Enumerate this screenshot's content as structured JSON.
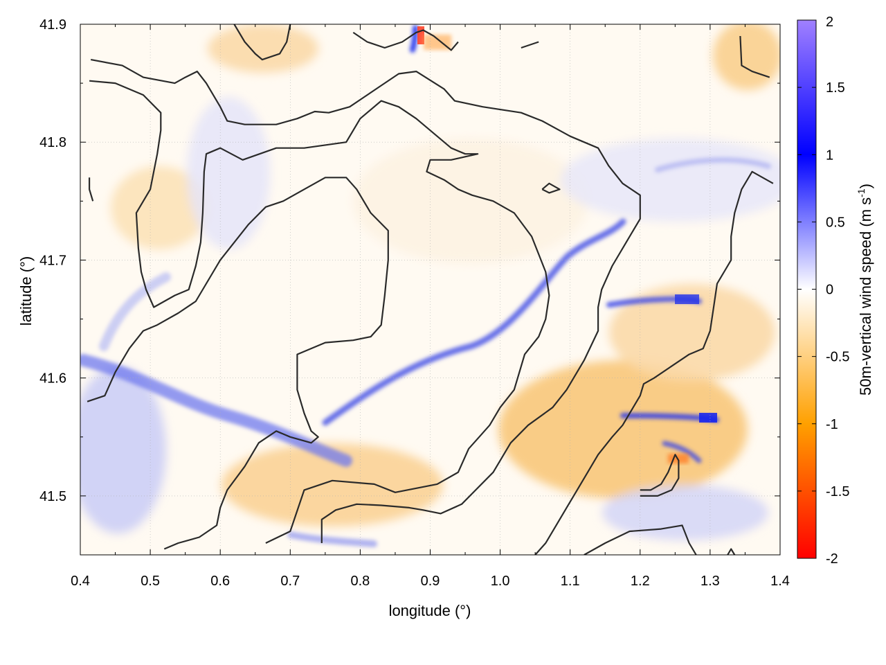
{
  "chart_data": {
    "type": "heatmap",
    "xlabel": "longitude (°)",
    "ylabel": "latitude (°)",
    "xlim": [
      0.4,
      1.4
    ],
    "ylim": [
      41.45,
      41.9
    ],
    "x_ticks": [
      0.4,
      0.5,
      0.6,
      0.7,
      0.8,
      0.9,
      1.0,
      1.1,
      1.2,
      1.3,
      1.4
    ],
    "x_tick_labels": [
      "0.4",
      "0.5",
      "0.6",
      "0.7",
      "0.8",
      "0.9",
      "1.0",
      "1.1",
      "1.2",
      "1.3",
      "1.4"
    ],
    "y_ticks": [
      41.5,
      41.6,
      41.7,
      41.8,
      41.9
    ],
    "y_tick_labels": [
      "41.5",
      "41.6",
      "41.7",
      "41.8",
      "41.9"
    ],
    "grid": true,
    "colorbar": {
      "label_main": "50m-vertical wind speed (m s",
      "label_sup": "-1",
      "label_close": ")",
      "range": [
        -2,
        2
      ],
      "ticks": [
        -2,
        -1.5,
        -1,
        -0.5,
        0,
        0.5,
        1,
        1.5,
        2
      ],
      "tick_labels": [
        "-2",
        "-1.5",
        "-1",
        "-0.5",
        "0",
        "0.5",
        "1",
        "1.5",
        "2"
      ],
      "colors": [
        {
          "v": -2.0,
          "c": "#ff0000"
        },
        {
          "v": -1.0,
          "c": "#ffa000"
        },
        {
          "v": 0.0,
          "c": "#ffffff"
        },
        {
          "v": 1.0,
          "c": "#0000ff"
        },
        {
          "v": 2.0,
          "c": "#a080ff"
        }
      ],
      "placement": "right"
    },
    "notable_features": [
      {
        "desc": "blue band",
        "lon": [
          0.5,
          0.92
        ],
        "lat": [
          41.55,
          41.6
        ],
        "value_approx": 0.6
      },
      {
        "desc": "blue ridge",
        "lon": [
          0.95,
          1.18
        ],
        "lat": [
          41.62,
          41.76
        ],
        "value_approx": 0.8
      },
      {
        "desc": "red spot",
        "lon": [
          0.88,
          0.9
        ],
        "lat": [
          41.88,
          41.9
        ],
        "value_approx": -1.6
      },
      {
        "desc": "blue spot",
        "lon": [
          1.29,
          1.3
        ],
        "lat": [
          41.56,
          41.57
        ],
        "value_approx": 1.1
      },
      {
        "desc": "orange region",
        "lon": [
          1.0,
          1.3
        ],
        "lat": [
          41.47,
          41.57
        ],
        "value_approx": -0.7
      }
    ],
    "contours": [
      [
        [
          0.415,
          41.87
        ],
        [
          0.46,
          41.865
        ],
        [
          0.49,
          41.855
        ],
        [
          0.535,
          41.85
        ],
        [
          0.55,
          41.855
        ],
        [
          0.567,
          41.86
        ],
        [
          0.58,
          41.85
        ],
        [
          0.6,
          41.83
        ],
        [
          0.61,
          41.818
        ],
        [
          0.635,
          41.815
        ],
        [
          0.68,
          41.815
        ],
        [
          0.71,
          41.82
        ],
        [
          0.735,
          41.826
        ],
        [
          0.755,
          41.825
        ],
        [
          0.785,
          41.83
        ],
        [
          0.805,
          41.838
        ],
        [
          0.83,
          41.848
        ],
        [
          0.855,
          41.858
        ],
        [
          0.88,
          41.86
        ],
        [
          0.92,
          41.845
        ],
        [
          0.935,
          41.835
        ],
        [
          0.975,
          41.83
        ],
        [
          1.03,
          41.825
        ],
        [
          1.06,
          41.818
        ],
        [
          1.1,
          41.805
        ],
        [
          1.14,
          41.795
        ],
        [
          1.155,
          41.78
        ],
        [
          1.175,
          41.765
        ],
        [
          1.2,
          41.755
        ],
        [
          1.2,
          41.735
        ],
        [
          1.18,
          41.715
        ],
        [
          1.16,
          41.695
        ],
        [
          1.145,
          41.675
        ],
        [
          1.14,
          41.66
        ],
        [
          1.14,
          41.64
        ],
        [
          1.12,
          41.615
        ],
        [
          1.095,
          41.59
        ],
        [
          1.075,
          41.575
        ],
        [
          1.04,
          41.56
        ],
        [
          1.015,
          41.545
        ],
        [
          0.99,
          41.52
        ],
        [
          0.965,
          41.505
        ],
        [
          0.945,
          41.493
        ],
        [
          0.915,
          41.485
        ],
        [
          0.89,
          41.488
        ],
        [
          0.87,
          41.49
        ],
        [
          0.83,
          41.492
        ],
        [
          0.795,
          41.493
        ],
        [
          0.765,
          41.488
        ],
        [
          0.745,
          41.48
        ],
        [
          0.745,
          41.46
        ]
      ],
      [
        [
          0.413,
          41.852
        ],
        [
          0.45,
          41.85
        ],
        [
          0.49,
          41.84
        ],
        [
          0.515,
          41.825
        ],
        [
          0.515,
          41.81
        ],
        [
          0.51,
          41.79
        ],
        [
          0.5,
          41.76
        ],
        [
          0.48,
          41.74
        ],
        [
          0.483,
          41.71
        ],
        [
          0.487,
          41.69
        ],
        [
          0.494,
          41.675
        ],
        [
          0.505,
          41.66
        ],
        [
          0.535,
          41.67
        ],
        [
          0.555,
          41.675
        ],
        [
          0.565,
          41.695
        ],
        [
          0.572,
          41.715
        ],
        [
          0.575,
          41.74
        ],
        [
          0.577,
          41.775
        ],
        [
          0.58,
          41.79
        ],
        [
          0.6,
          41.795
        ],
        [
          0.632,
          41.785
        ],
        [
          0.68,
          41.795
        ],
        [
          0.72,
          41.795
        ],
        [
          0.78,
          41.8
        ],
        [
          0.8,
          41.82
        ],
        [
          0.83,
          41.835
        ],
        [
          0.855,
          41.83
        ],
        [
          0.88,
          41.82
        ],
        [
          0.91,
          41.805
        ],
        [
          0.93,
          41.795
        ],
        [
          0.95,
          41.79
        ],
        [
          0.968,
          41.79
        ],
        [
          0.93,
          41.785
        ],
        [
          0.9,
          41.785
        ],
        [
          0.895,
          41.775
        ],
        [
          0.92,
          41.768
        ],
        [
          0.94,
          41.76
        ],
        [
          0.96,
          41.755
        ],
        [
          0.99,
          41.75
        ],
        [
          1.02,
          41.74
        ],
        [
          1.045,
          41.72
        ],
        [
          1.055,
          41.705
        ],
        [
          1.065,
          41.69
        ],
        [
          1.07,
          41.67
        ],
        [
          1.065,
          41.65
        ],
        [
          1.055,
          41.635
        ],
        [
          1.035,
          41.62
        ],
        [
          1.02,
          41.59
        ],
        [
          1.0,
          41.575
        ],
        [
          0.985,
          41.56
        ],
        [
          0.97,
          41.55
        ],
        [
          0.955,
          41.54
        ],
        [
          0.94,
          41.52
        ],
        [
          0.91,
          41.51
        ],
        [
          0.85,
          41.503
        ],
        [
          0.82,
          41.51
        ],
        [
          0.76,
          41.513
        ],
        [
          0.72,
          41.505
        ],
        [
          0.7,
          41.47
        ],
        [
          0.665,
          41.46
        ]
      ],
      [
        [
          0.413,
          41.77
        ],
        [
          0.413,
          41.76
        ],
        [
          0.418,
          41.75
        ]
      ],
      [
        [
          0.41,
          41.58
        ],
        [
          0.435,
          41.585
        ],
        [
          0.45,
          41.605
        ],
        [
          0.47,
          41.625
        ],
        [
          0.49,
          41.64
        ],
        [
          0.51,
          41.645
        ],
        [
          0.54,
          41.655
        ],
        [
          0.565,
          41.665
        ],
        [
          0.575,
          41.675
        ],
        [
          0.585,
          41.685
        ],
        [
          0.6,
          41.7
        ],
        [
          0.62,
          41.715
        ],
        [
          0.64,
          41.73
        ],
        [
          0.665,
          41.745
        ],
        [
          0.69,
          41.75
        ],
        [
          0.72,
          41.76
        ],
        [
          0.75,
          41.77
        ],
        [
          0.78,
          41.77
        ],
        [
          0.795,
          41.76
        ],
        [
          0.815,
          41.74
        ],
        [
          0.84,
          41.725
        ],
        [
          0.84,
          41.7
        ],
        [
          0.835,
          41.67
        ],
        [
          0.83,
          41.645
        ],
        [
          0.815,
          41.635
        ],
        [
          0.79,
          41.632
        ],
        [
          0.75,
          41.63
        ],
        [
          0.73,
          41.625
        ],
        [
          0.71,
          41.62
        ],
        [
          0.71,
          41.59
        ],
        [
          0.72,
          41.57
        ],
        [
          0.73,
          41.555
        ],
        [
          0.74,
          41.55
        ],
        [
          0.73,
          41.545
        ],
        [
          0.7,
          41.55
        ],
        [
          0.68,
          41.555
        ],
        [
          0.655,
          41.545
        ],
        [
          0.635,
          41.525
        ],
        [
          0.61,
          41.505
        ],
        [
          0.6,
          41.49
        ],
        [
          0.595,
          41.475
        ],
        [
          0.57,
          41.465
        ],
        [
          0.54,
          41.46
        ],
        [
          0.52,
          41.455
        ]
      ],
      [
        [
          0.62,
          41.9
        ],
        [
          0.635,
          41.885
        ],
        [
          0.65,
          41.875
        ],
        [
          0.66,
          41.87
        ],
        [
          0.685,
          41.875
        ],
        [
          0.695,
          41.885
        ],
        [
          0.7,
          41.9
        ]
      ],
      [
        [
          0.79,
          41.893
        ],
        [
          0.81,
          41.885
        ],
        [
          0.835,
          41.88
        ],
        [
          0.86,
          41.885
        ],
        [
          0.88,
          41.893
        ],
        [
          0.89,
          41.895
        ],
        [
          0.905,
          41.89
        ],
        [
          0.93,
          41.878
        ],
        [
          0.94,
          41.885
        ]
      ],
      [
        [
          1.03,
          41.88
        ],
        [
          1.055,
          41.885
        ]
      ],
      [
        [
          1.343,
          41.89
        ],
        [
          1.345,
          41.865
        ],
        [
          1.36,
          41.86
        ],
        [
          1.385,
          41.855
        ]
      ],
      [
        [
          1.06,
          41.76
        ],
        [
          1.07,
          41.765
        ],
        [
          1.085,
          41.76
        ],
        [
          1.07,
          41.757
        ],
        [
          1.06,
          41.76
        ]
      ],
      [
        [
          1.39,
          41.765
        ],
        [
          1.36,
          41.775
        ],
        [
          1.345,
          41.76
        ],
        [
          1.335,
          41.74
        ],
        [
          1.33,
          41.72
        ],
        [
          1.33,
          41.7
        ],
        [
          1.32,
          41.69
        ],
        [
          1.31,
          41.68
        ],
        [
          1.305,
          41.66
        ],
        [
          1.3,
          41.64
        ],
        [
          1.29,
          41.625
        ],
        [
          1.27,
          41.62
        ],
        [
          1.245,
          41.61
        ],
        [
          1.22,
          41.6
        ],
        [
          1.205,
          41.595
        ],
        [
          1.2,
          41.585
        ],
        [
          1.19,
          41.575
        ],
        [
          1.175,
          41.56
        ],
        [
          1.16,
          41.55
        ],
        [
          1.14,
          41.535
        ],
        [
          1.125,
          41.52
        ],
        [
          1.11,
          41.505
        ],
        [
          1.095,
          41.49
        ],
        [
          1.08,
          41.475
        ],
        [
          1.065,
          41.46
        ],
        [
          1.05,
          41.45
        ]
      ],
      [
        [
          1.2,
          41.5
        ],
        [
          1.225,
          41.5
        ],
        [
          1.245,
          41.505
        ],
        [
          1.255,
          41.515
        ],
        [
          1.255,
          41.53
        ],
        [
          1.25,
          41.535
        ],
        [
          1.24,
          41.52
        ],
        [
          1.23,
          41.51
        ],
        [
          1.215,
          41.505
        ],
        [
          1.2,
          41.505
        ]
      ],
      [
        [
          1.12,
          41.45
        ],
        [
          1.15,
          41.46
        ],
        [
          1.185,
          41.47
        ],
        [
          1.23,
          41.472
        ],
        [
          1.26,
          41.475
        ],
        [
          1.27,
          41.46
        ],
        [
          1.28,
          41.45
        ]
      ],
      [
        [
          1.325,
          41.45
        ],
        [
          1.33,
          41.455
        ],
        [
          1.335,
          41.45
        ]
      ]
    ]
  }
}
